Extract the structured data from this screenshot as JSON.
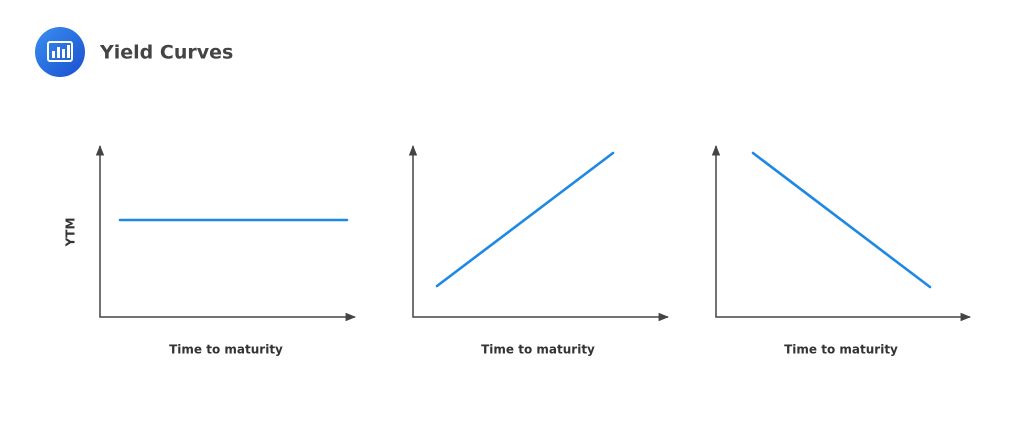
{
  "header": {
    "title": "Yield Curves"
  },
  "panels": [
    {
      "y_label": "YTM",
      "x_label": "Time to maturity"
    },
    {
      "x_label": "Time to maturity"
    },
    {
      "x_label": "Time to maturity"
    }
  ]
}
